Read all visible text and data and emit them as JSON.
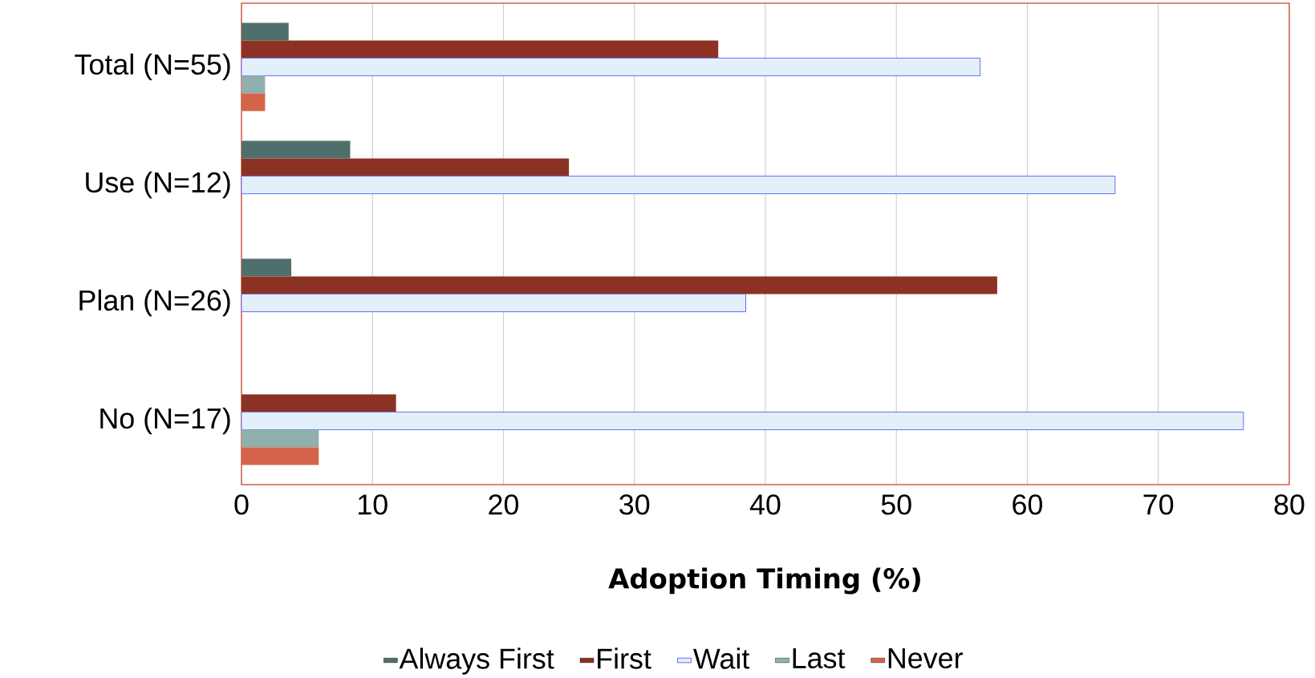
{
  "chart_data": {
    "type": "bar",
    "orientation": "horizontal",
    "xlabel": "Adoption Timing (%)",
    "categories": [
      "Total (N=55)",
      "Use (N=12)",
      "Plan (N=26)",
      "No (N=17)"
    ],
    "series": [
      {
        "name": "Always First",
        "color": "#4f6f6c",
        "values": [
          3.6,
          8.3,
          3.8,
          0
        ]
      },
      {
        "name": "First",
        "color": "#8b3224",
        "values": [
          36.4,
          25.0,
          57.7,
          11.8
        ]
      },
      {
        "name": "Wait",
        "color": "#e4f0f9",
        "values": [
          56.4,
          66.7,
          38.5,
          76.5
        ]
      },
      {
        "name": "Last",
        "color": "#8fb0ad",
        "values": [
          1.8,
          0,
          0,
          5.9
        ]
      },
      {
        "name": "Never",
        "color": "#d4634a",
        "values": [
          1.8,
          0,
          0,
          5.9
        ]
      }
    ],
    "xlim": [
      0,
      80
    ],
    "xticks": [
      0,
      10,
      20,
      30,
      40,
      50,
      60,
      70,
      80
    ],
    "grid": "x",
    "legend": "bottom"
  }
}
